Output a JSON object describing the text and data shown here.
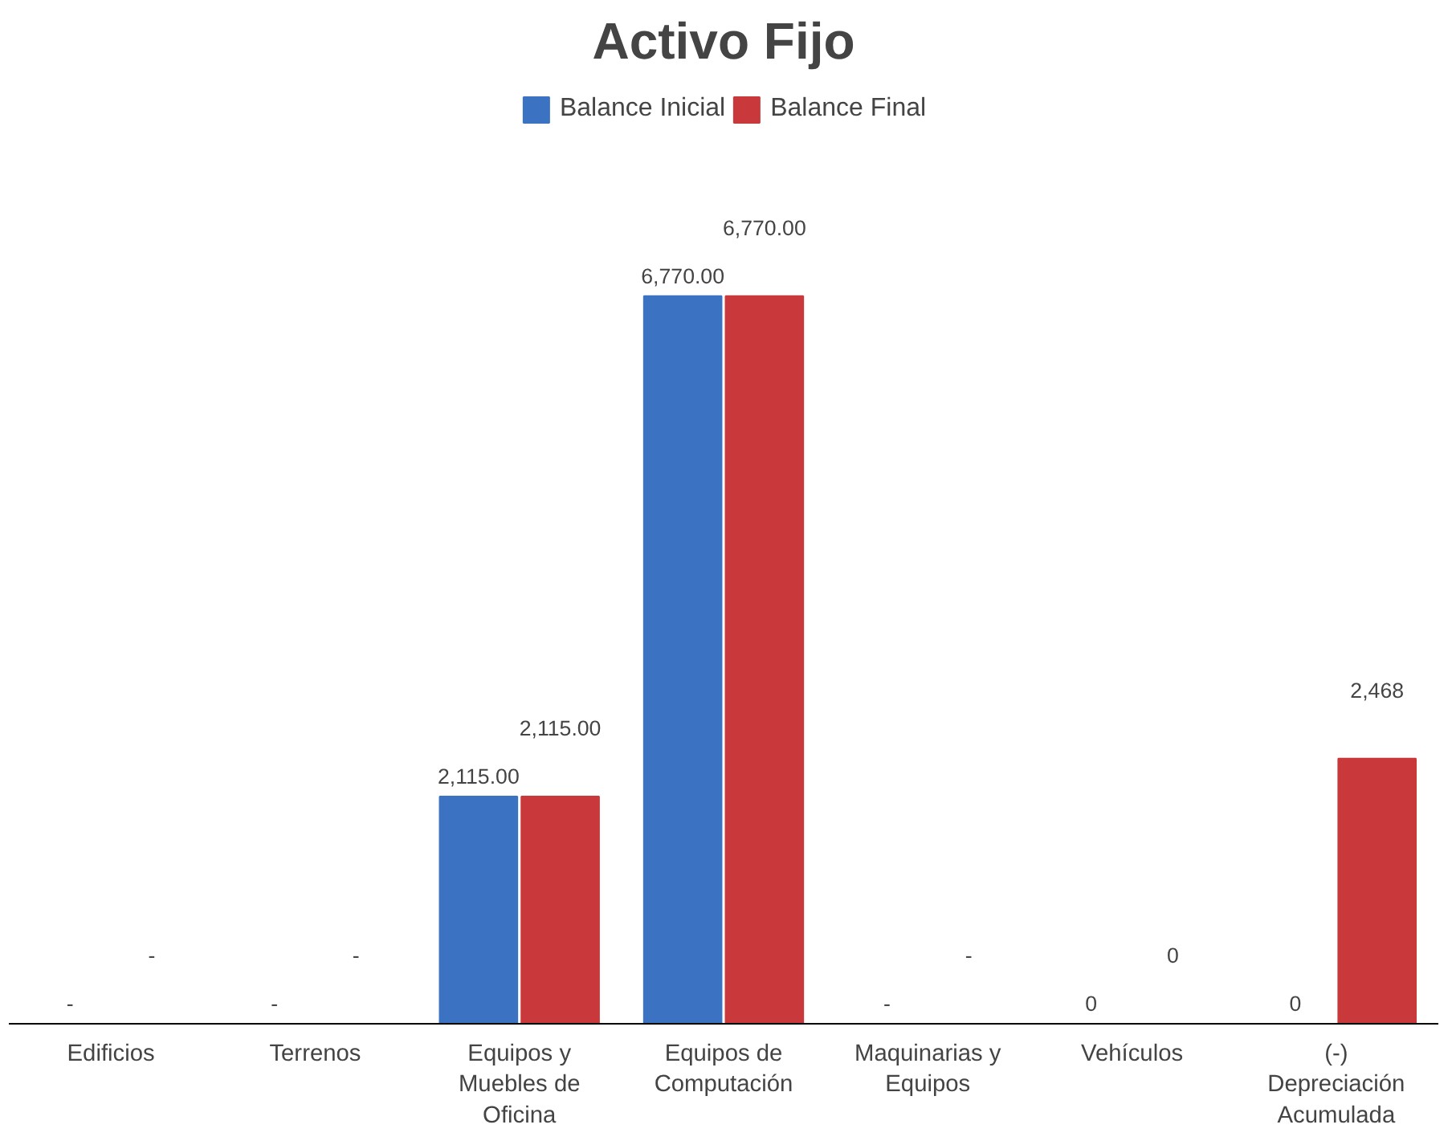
{
  "chart_data": {
    "type": "bar",
    "title": "Activo Fijo",
    "categories": [
      "Edificios",
      "Terrenos",
      "Equipos y Muebles de Oficina",
      "Equipos de Computación",
      "Maquinarias y Equipos",
      "Vehículos",
      "(-) Depreciación Acumulada"
    ],
    "series": [
      {
        "name": "Balance Inicial",
        "color": "#3b73c2",
        "values": [
          0,
          0,
          2115,
          6770,
          0,
          0,
          0
        ],
        "value_labels": [
          "-",
          "-",
          "2,115.00",
          "6,770.00",
          "-",
          "0",
          "0"
        ]
      },
      {
        "name": "Balance Final",
        "color": "#c9393b",
        "values": [
          0,
          0,
          2115,
          6770,
          0,
          0,
          2468
        ],
        "value_labels": [
          "-",
          "-",
          "2,115.00",
          "6,770.00",
          "-",
          "0",
          "2,468"
        ]
      }
    ],
    "legend": "top",
    "grid": false
  }
}
